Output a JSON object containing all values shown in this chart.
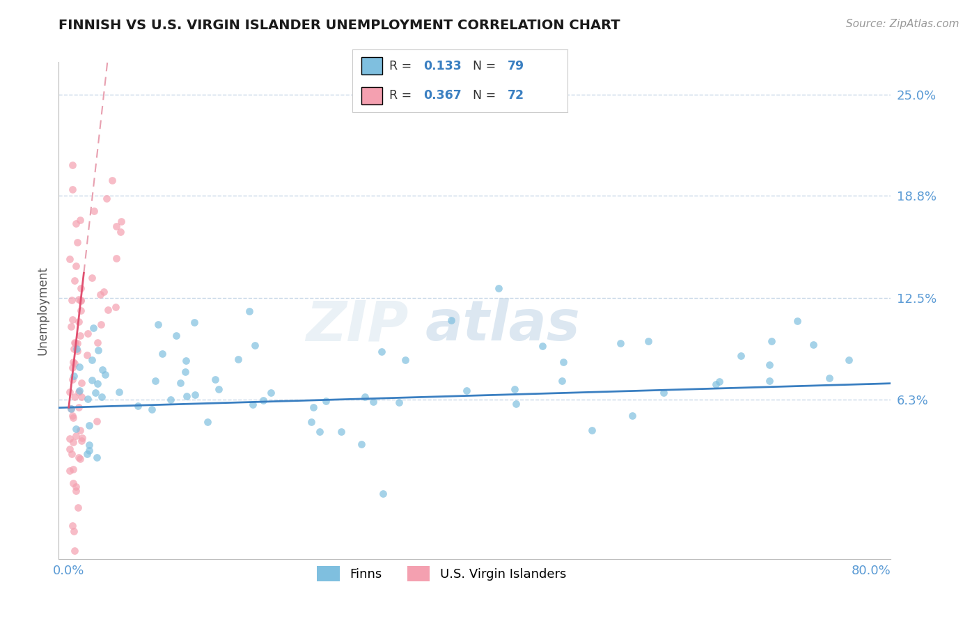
{
  "title": "FINNISH VS U.S. VIRGIN ISLANDER UNEMPLOYMENT CORRELATION CHART",
  "source": "Source: ZipAtlas.com",
  "ylabel": "Unemployment",
  "xlim": [
    -1.0,
    82.0
  ],
  "ylim": [
    -3.5,
    27.0
  ],
  "yticks": [
    6.3,
    12.5,
    18.8,
    25.0
  ],
  "ytick_labels": [
    "6.3%",
    "12.5%",
    "18.8%",
    "25.0%"
  ],
  "xticks": [
    0.0,
    80.0
  ],
  "xtick_labels": [
    "0.0%",
    "80.0%"
  ],
  "finns_color": "#7fbfdf",
  "vi_color": "#f4a0b0",
  "finns_R": 0.133,
  "finns_N": 79,
  "vi_R": 0.367,
  "vi_N": 72,
  "title_color": "#1a1a1a",
  "axis_label_color": "#555555",
  "tick_color": "#5b9bd5",
  "grid_color": "#c8d8e8",
  "trendline_finns_color": "#3a7fc1",
  "trendline_vi_color": "#e05070",
  "trendline_vi_dashed_color": "#e8a0b0",
  "background_color": "#ffffff",
  "legend_edge_color": "#cccccc",
  "value_color": "#3a7fc1"
}
